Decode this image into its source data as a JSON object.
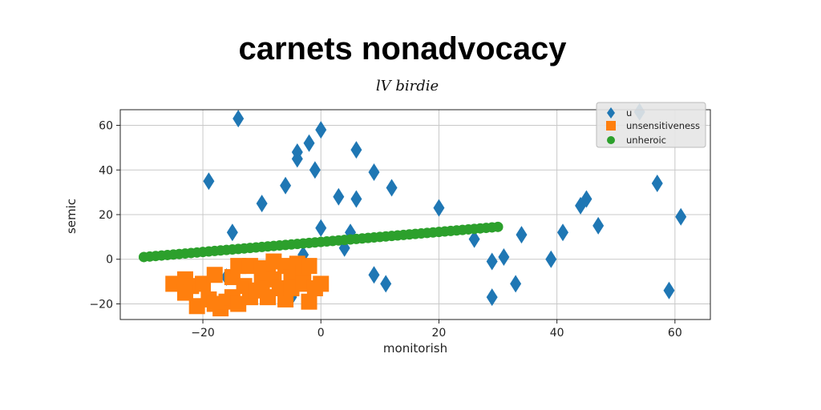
{
  "chart_data": {
    "type": "scatter",
    "title": "carnets nonadvocacy",
    "subtitle": "lV birdie",
    "xlabel": "monitorish",
    "ylabel": "semic",
    "xlim": [
      -34,
      66
    ],
    "ylim": [
      -27,
      67
    ],
    "xticks": [
      -20,
      0,
      20,
      40,
      60
    ],
    "yticks": [
      -20,
      0,
      20,
      40,
      60
    ],
    "xtick_labels": [
      "−20",
      "0",
      "20",
      "40",
      "60"
    ],
    "ytick_labels": [
      "−20",
      "0",
      "20",
      "40",
      "60"
    ],
    "grid": true,
    "legend_position": "top-right",
    "series": [
      {
        "name": "u",
        "marker": "diamond",
        "color": "#1f77b4",
        "points": [
          [
            -19,
            35
          ],
          [
            -14,
            63
          ],
          [
            -15,
            12
          ],
          [
            -10,
            25
          ],
          [
            -6,
            33
          ],
          [
            -4,
            48
          ],
          [
            -4,
            45
          ],
          [
            -2,
            52
          ],
          [
            -1,
            40
          ],
          [
            0,
            58
          ],
          [
            0,
            14
          ],
          [
            3,
            28
          ],
          [
            4,
            5
          ],
          [
            5,
            12
          ],
          [
            6,
            27
          ],
          [
            6,
            49
          ],
          [
            9,
            39
          ],
          [
            9,
            -7
          ],
          [
            11,
            -11
          ],
          [
            12,
            32
          ],
          [
            20,
            23
          ],
          [
            26,
            9
          ],
          [
            29,
            -1
          ],
          [
            29,
            -17
          ],
          [
            31,
            1
          ],
          [
            33,
            -11
          ],
          [
            34,
            11
          ],
          [
            39,
            0
          ],
          [
            41,
            12
          ],
          [
            44,
            24
          ],
          [
            45,
            27
          ],
          [
            47,
            15
          ],
          [
            54,
            66
          ],
          [
            57,
            34
          ],
          [
            59,
            -14
          ],
          [
            61,
            19
          ],
          [
            -16,
            -8
          ],
          [
            -5,
            -17
          ],
          [
            -3,
            2
          ]
        ]
      },
      {
        "name": "unsensitiveness",
        "marker": "square",
        "color": "#ff7f0e",
        "points": [
          [
            -25,
            -11
          ],
          [
            -23,
            -9
          ],
          [
            -22,
            -12
          ],
          [
            -21,
            -21
          ],
          [
            -20,
            -11
          ],
          [
            -19,
            -18
          ],
          [
            -18,
            -20
          ],
          [
            -17,
            -22
          ],
          [
            -16,
            -19
          ],
          [
            -15,
            -8
          ],
          [
            -15,
            -17
          ],
          [
            -14,
            -3
          ],
          [
            -14,
            -20
          ],
          [
            -13,
            -12
          ],
          [
            -12,
            -3
          ],
          [
            -12,
            -17
          ],
          [
            -11,
            -14
          ],
          [
            -10,
            -4
          ],
          [
            -10,
            -11
          ],
          [
            -9,
            -6
          ],
          [
            -9,
            -17
          ],
          [
            -8,
            -1
          ],
          [
            -8,
            -9
          ],
          [
            -7,
            -13
          ],
          [
            -6,
            -3
          ],
          [
            -6,
            -18
          ],
          [
            -5,
            -8
          ],
          [
            -5,
            -13
          ],
          [
            -4,
            -2
          ],
          [
            -3,
            -6
          ],
          [
            -3,
            -11
          ],
          [
            -2,
            -3
          ],
          [
            -2,
            -19
          ],
          [
            -1,
            -13
          ],
          [
            0,
            -11
          ],
          [
            -18,
            -7
          ],
          [
            -23,
            -15
          ]
        ]
      },
      {
        "name": "unheroic",
        "marker": "circle",
        "color": "#2ca02c",
        "line": {
          "x_start": -30,
          "y_start": 1,
          "x_end": 30,
          "y_end": 14.5,
          "count": 61
        }
      }
    ]
  }
}
